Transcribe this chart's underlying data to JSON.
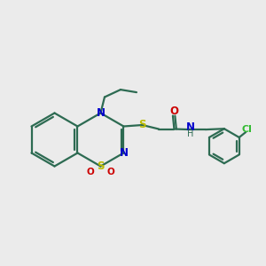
{
  "bg_color": "#ebebeb",
  "bond_color": "#2d6b52",
  "N_color": "#0000cc",
  "S_color": "#bbbb00",
  "O_color": "#cc0000",
  "Cl_color": "#33bb33",
  "line_width": 1.6,
  "font_size": 8.5,
  "fig_w": 3.0,
  "fig_h": 3.0,
  "dpi": 100,
  "xlim": [
    0,
    10
  ],
  "ylim": [
    0,
    10
  ]
}
